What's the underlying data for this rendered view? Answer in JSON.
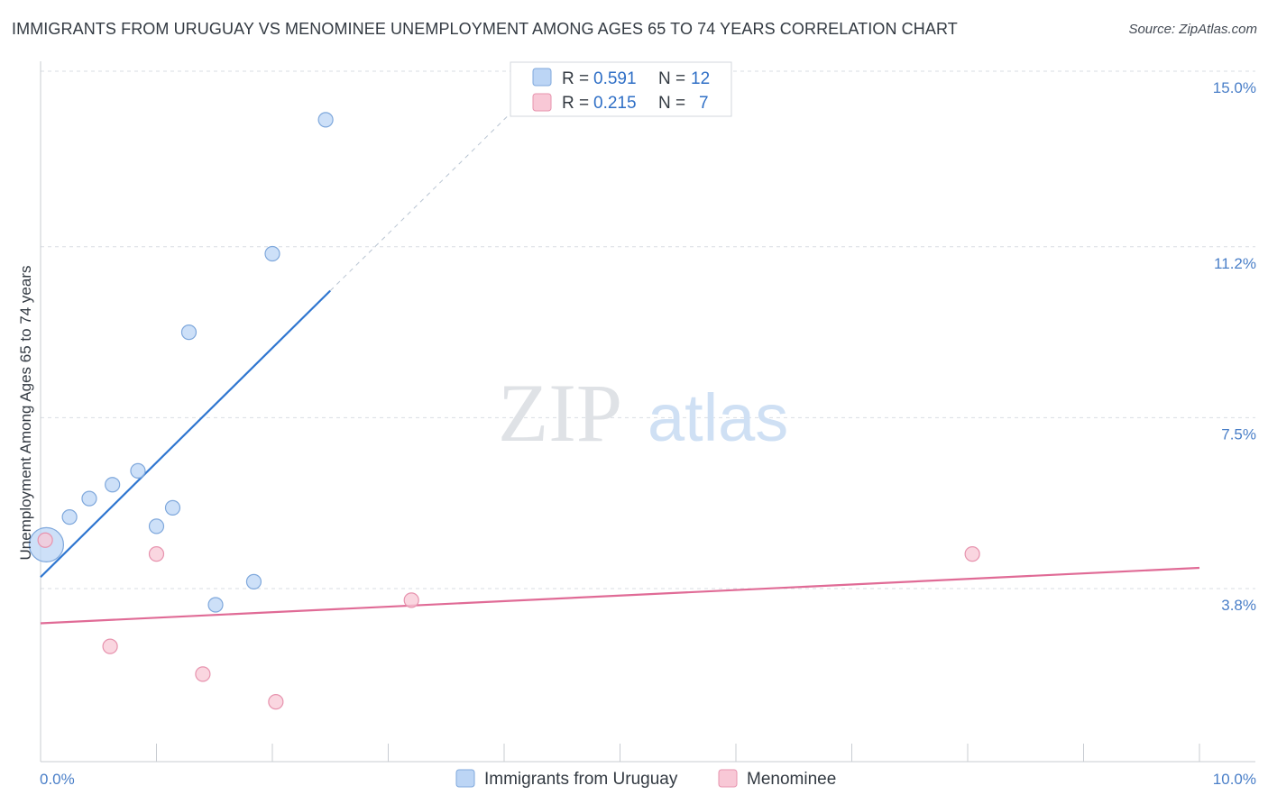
{
  "title": "IMMIGRANTS FROM URUGUAY VS MENOMINEE UNEMPLOYMENT AMONG AGES 65 TO 74 YEARS CORRELATION CHART",
  "source": "Source: ZipAtlas.com",
  "watermark": {
    "zip": "ZIP",
    "atlas": "atlas"
  },
  "colors": {
    "blue_fill": "#bcd5f5",
    "blue_stroke": "#7fa8dc",
    "blue_line": "#2f76d0",
    "pink_fill": "#f8c8d6",
    "pink_stroke": "#e793ae",
    "pink_line": "#e06b96",
    "grid": "#d9dde3",
    "axis_tick": "#4a7fc8"
  },
  "legend": {
    "r_label": "R =",
    "n_label": "N =",
    "rows": [
      {
        "r": "0.591",
        "n": "12"
      },
      {
        "r": "0.215",
        "n": "7"
      }
    ]
  },
  "chart_data": {
    "type": "scatter",
    "title": "IMMIGRANTS FROM URUGUAY VS MENOMINEE UNEMPLOYMENT AMONG AGES 65 TO 74 YEARS CORRELATION CHART",
    "xlabel": "",
    "ylabel": "Unemployment Among Ages 65 to 74 years",
    "xlim": [
      0,
      10
    ],
    "ylim": [
      0,
      15.0
    ],
    "x_tick_labels": [
      "0.0%",
      "10.0%"
    ],
    "y_ticks": [
      3.8,
      7.5,
      11.2,
      15.0
    ],
    "y_tick_labels": [
      "3.8%",
      "7.5%",
      "11.2%",
      "15.0%"
    ],
    "grid": true,
    "legend_position": "top-center",
    "series": [
      {
        "name": "Immigrants from Uruguay",
        "color": "#bcd5f5",
        "points": [
          {
            "x": 0.05,
            "y": 5.1,
            "size": "large"
          },
          {
            "x": 0.25,
            "y": 5.7
          },
          {
            "x": 0.42,
            "y": 6.1
          },
          {
            "x": 0.62,
            "y": 6.4
          },
          {
            "x": 0.84,
            "y": 6.7
          },
          {
            "x": 1.0,
            "y": 5.5
          },
          {
            "x": 1.14,
            "y": 5.9
          },
          {
            "x": 1.28,
            "y": 9.7
          },
          {
            "x": 1.51,
            "y": 3.8
          },
          {
            "x": 1.84,
            "y": 4.3
          },
          {
            "x": 2.0,
            "y": 11.4
          },
          {
            "x": 2.46,
            "y": 14.3
          }
        ],
        "trend": {
          "x0": 0.0,
          "y0": 4.4,
          "x1": 2.5,
          "y1": 10.6,
          "dashed_to": {
            "x": 4.2,
            "y": 14.8
          }
        }
      },
      {
        "name": "Menominee",
        "color": "#f8c8d6",
        "points": [
          {
            "x": 0.04,
            "y": 5.2
          },
          {
            "x": 0.6,
            "y": 2.9
          },
          {
            "x": 1.0,
            "y": 4.9
          },
          {
            "x": 1.4,
            "y": 2.3
          },
          {
            "x": 2.03,
            "y": 1.7
          },
          {
            "x": 3.2,
            "y": 3.9
          },
          {
            "x": 8.04,
            "y": 4.9
          }
        ],
        "trend": {
          "x0": 0.0,
          "y0": 3.4,
          "x1": 10.0,
          "y1": 4.6
        }
      }
    ]
  }
}
